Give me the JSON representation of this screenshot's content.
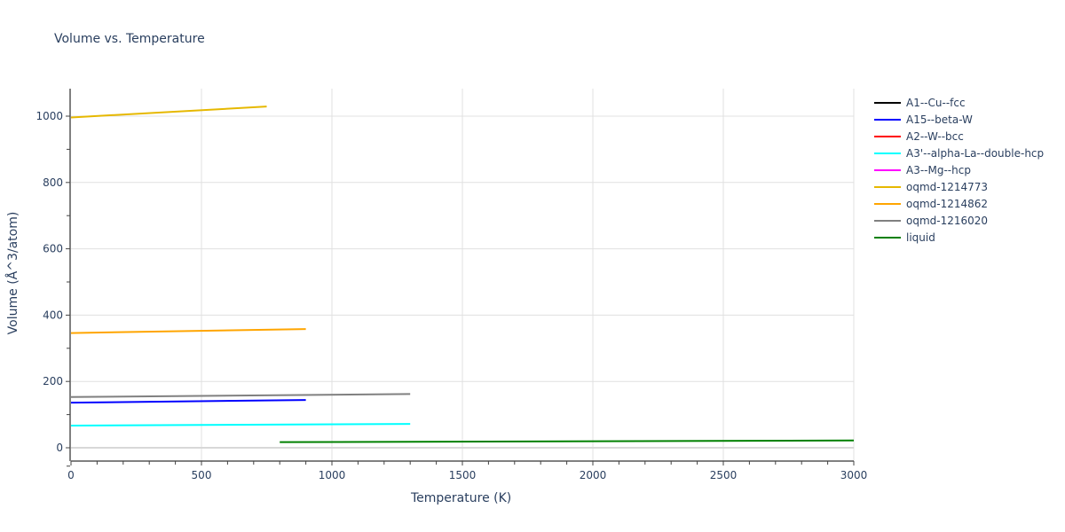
{
  "chart_data": {
    "type": "line",
    "title": "Volume vs. Temperature",
    "xlabel": "Temperature (K)",
    "ylabel": "Volume (Å^3/atom)",
    "xlim": [
      0,
      3000
    ],
    "ylim": [
      -40,
      1090
    ],
    "xticks": [
      0,
      500,
      1000,
      1500,
      2000,
      2500,
      3000
    ],
    "yticks": [
      0,
      200,
      400,
      600,
      800,
      1000
    ],
    "grid": true,
    "legend_position": "right",
    "series": [
      {
        "name": "A1--Cu--fcc",
        "color": "#000000",
        "x": [],
        "y": []
      },
      {
        "name": "A15--beta-W",
        "color": "#0000ff",
        "x": [
          0,
          900
        ],
        "y": [
          136,
          144
        ]
      },
      {
        "name": "A2--W--bcc",
        "color": "#ff0000",
        "x": [],
        "y": []
      },
      {
        "name": "A3'--alpha-La--double-hcp",
        "color": "#00ffff",
        "x": [
          0,
          1300
        ],
        "y": [
          67,
          72
        ]
      },
      {
        "name": "A3--Mg--hcp",
        "color": "#ff00ff",
        "x": [],
        "y": []
      },
      {
        "name": "oqmd-1214773",
        "color": "#e6b800",
        "x": [
          0,
          750
        ],
        "y": [
          996,
          1029
        ]
      },
      {
        "name": "oqmd-1214862",
        "color": "#ffa500",
        "x": [
          0,
          900
        ],
        "y": [
          346,
          358
        ]
      },
      {
        "name": "oqmd-1216020",
        "color": "#808080",
        "x": [
          0,
          1300
        ],
        "y": [
          153,
          162
        ]
      },
      {
        "name": "liquid",
        "color": "#008000",
        "x": [
          800,
          3000
        ],
        "y": [
          17,
          22
        ]
      }
    ]
  }
}
